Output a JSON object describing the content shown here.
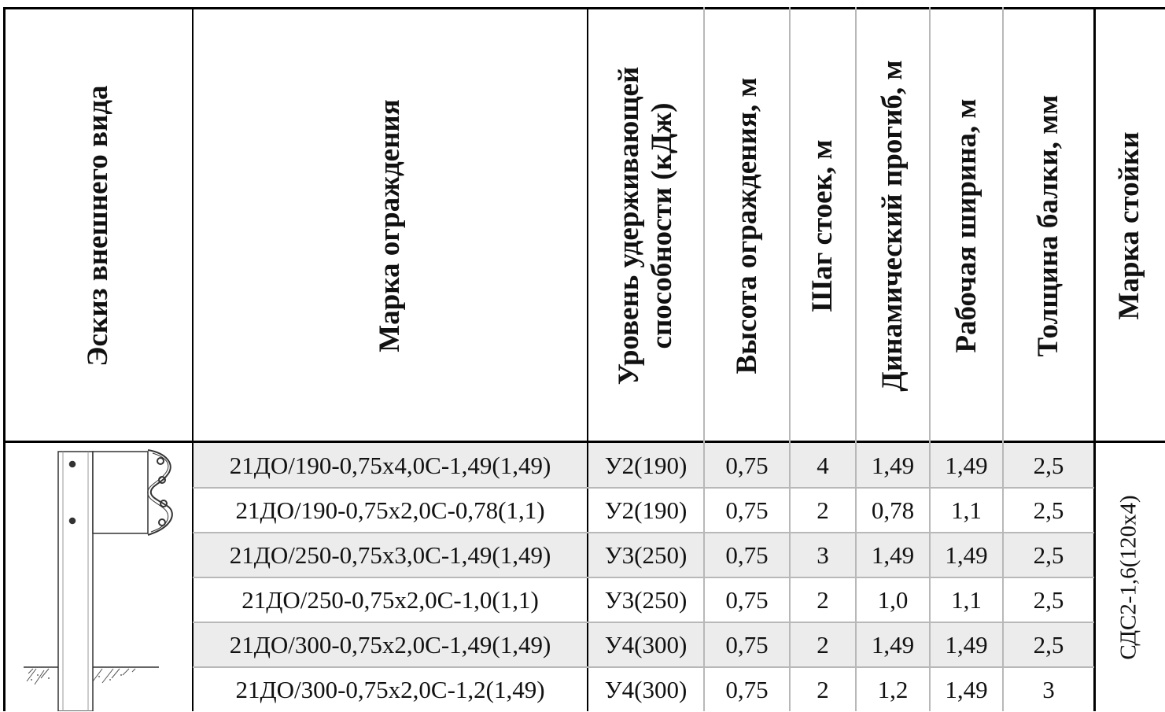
{
  "headers": {
    "sketch": "Эскиз внешнего вида",
    "brand": "Марка ограждения",
    "level_line1": "Уровень удерживающей",
    "level_line2": "способности (кДж)",
    "height": "Высота ограждения, м",
    "step": "Шаг стоек, м",
    "deflection": "Динамический прогиб, м",
    "width": "Рабочая ширина, м",
    "thickness": "Толщина балки, мм",
    "post": "Марка стойки"
  },
  "rows": [
    {
      "brand": "21ДО/190-0,75х4,0С-1,49(1,49)",
      "level": "У2(190)",
      "height": "0,75",
      "step": "4",
      "deflection": "1,49",
      "width": "1,49",
      "thickness": "2,5"
    },
    {
      "brand": "21ДО/190-0,75х2,0С-0,78(1,1)",
      "level": "У2(190)",
      "height": "0,75",
      "step": "2",
      "deflection": "0,78",
      "width": "1,1",
      "thickness": "2,5"
    },
    {
      "brand": "21ДО/250-0,75х3,0С-1,49(1,49)",
      "level": "У3(250)",
      "height": "0,75",
      "step": "3",
      "deflection": "1,49",
      "width": "1,49",
      "thickness": "2,5"
    },
    {
      "brand": "21ДО/250-0,75х2,0С-1,0(1,1)",
      "level": "У3(250)",
      "height": "0,75",
      "step": "2",
      "deflection": "1,0",
      "width": "1,1",
      "thickness": "2,5"
    },
    {
      "brand": "21ДО/300-0,75х2,0С-1,49(1,49)",
      "level": "У4(300)",
      "height": "0,75",
      "step": "2",
      "deflection": "1,49",
      "width": "1,49",
      "thickness": "2,5"
    },
    {
      "brand": "21ДО/300-0,75х2,0С-1,2(1,49)",
      "level": "У4(300)",
      "height": "0,75",
      "step": "2",
      "deflection": "1,2",
      "width": "1,49",
      "thickness": "3"
    }
  ],
  "post_brand": "СДС2-1,6(120х4)",
  "colors": {
    "row_shade": "#ececec",
    "border": "#000000",
    "inner_border": "#b8b8b8"
  }
}
